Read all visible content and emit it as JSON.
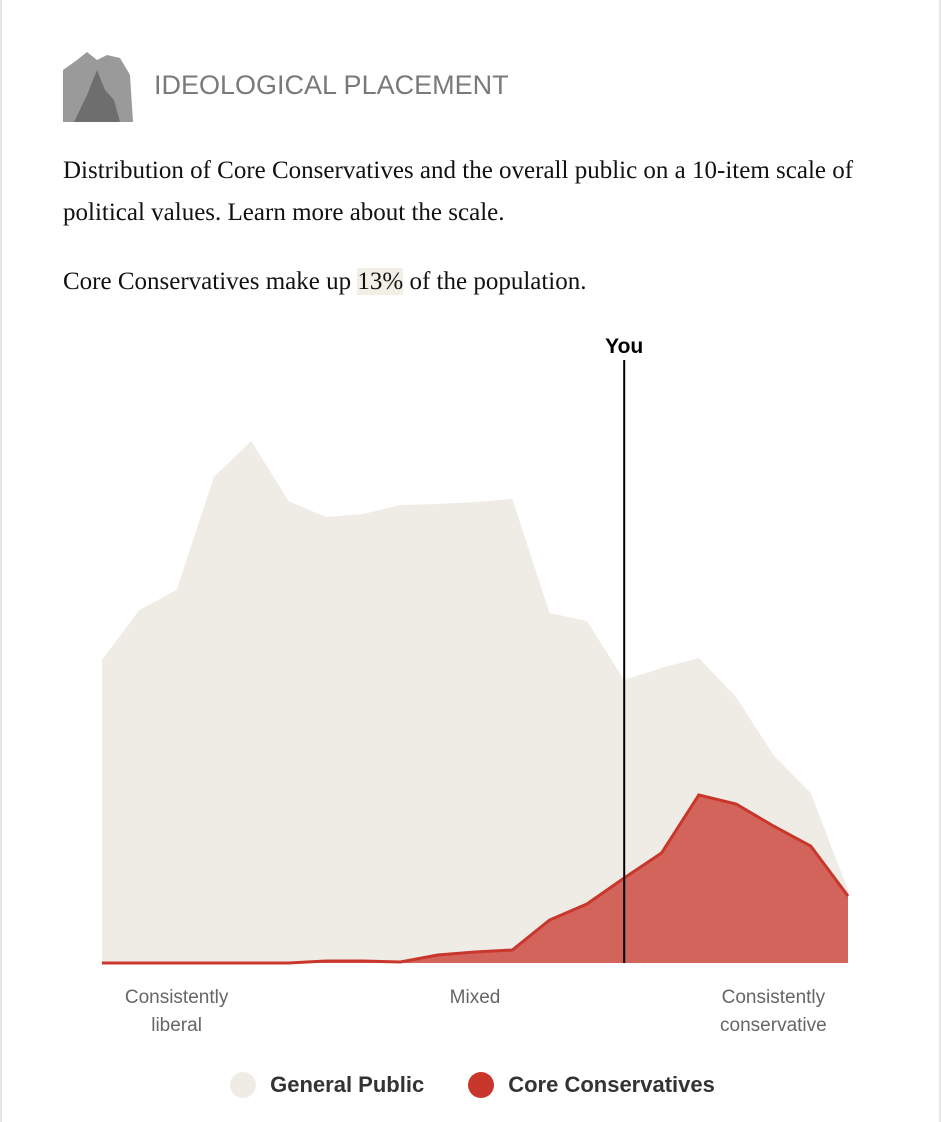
{
  "header": {
    "title": "IDEOLOGICAL PLACEMENT",
    "description": "Distribution of Core Conservatives and the overall public on a 10-item scale of political values. Learn more about the scale.",
    "share_prefix": "Core Conservatives make up",
    "share_value": "13%",
    "share_suffix": "of the population."
  },
  "chart_data": {
    "type": "area",
    "x": [
      -10,
      -9,
      -8,
      -7,
      -6,
      -5,
      -4,
      -3,
      -2,
      -1,
      0,
      1,
      2,
      3,
      4,
      5,
      6,
      7,
      8,
      9,
      10
    ],
    "xlim": [
      -10,
      10
    ],
    "ylim": [
      0,
      6
    ],
    "xticks": [
      {
        "value": -8,
        "label": "Consistently liberal"
      },
      {
        "value": 0,
        "label": "Mixed"
      },
      {
        "value": 8,
        "label": "Consistently conservative"
      }
    ],
    "series": [
      {
        "name": "General Public",
        "color": "#efece6",
        "values": [
          3.03,
          3.53,
          3.73,
          4.86,
          5.22,
          4.62,
          4.46,
          4.49,
          4.58,
          4.59,
          4.61,
          4.64,
          3.5,
          3.42,
          2.83,
          2.95,
          3.05,
          2.66,
          2.08,
          1.7,
          0.73
        ]
      },
      {
        "name": "Core Conservatives",
        "color": "#c9372c",
        "values": [
          0,
          0,
          0,
          0,
          0,
          0,
          0.02,
          0.02,
          0.01,
          0.08,
          0.11,
          0.13,
          0.43,
          0.59,
          0.85,
          1.1,
          1.68,
          1.59,
          1.37,
          1.17,
          0.67
        ]
      }
    ],
    "annotations": [
      {
        "label": "You",
        "x": 4
      }
    ]
  }
}
